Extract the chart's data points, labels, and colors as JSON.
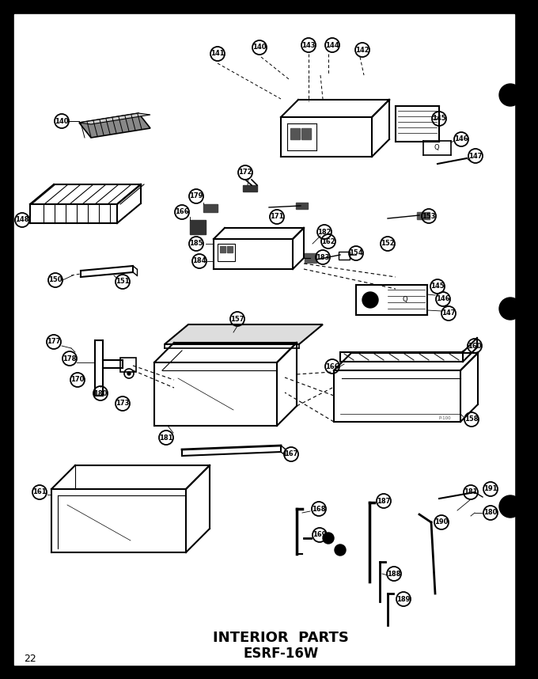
{
  "title_line1": "INTERIOR  PARTS",
  "title_line2": "ESRF-16W",
  "page_number": "22",
  "bg_color": "#ffffff",
  "figsize": [
    6.8,
    8.58
  ],
  "dpi": 100
}
